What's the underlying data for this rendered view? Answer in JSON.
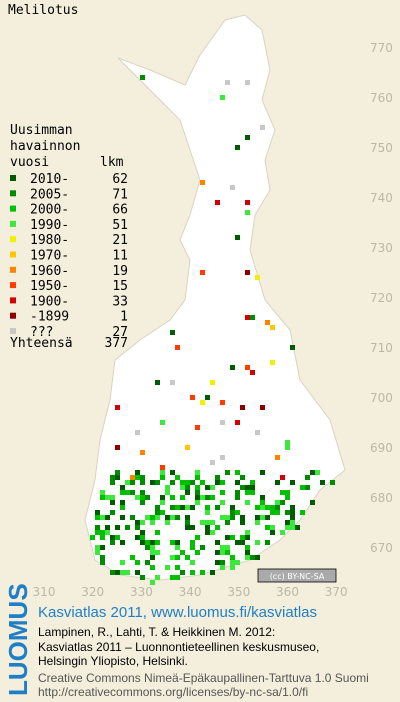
{
  "header": {
    "title": "Melilotus"
  },
  "legend": {
    "heading": [
      "Uusimman",
      "havainnon",
      "vuosi"
    ],
    "count_heading": "lkm",
    "rows": [
      {
        "label": "2010-",
        "count": 62,
        "color": "#005a00"
      },
      {
        "label": "2005-",
        "count": 71,
        "color": "#008c00"
      },
      {
        "label": "2000-",
        "count": 66,
        "color": "#00c000"
      },
      {
        "label": "1990-",
        "count": 51,
        "color": "#3ce83c"
      },
      {
        "label": "1980-",
        "count": 21,
        "color": "#f0f000"
      },
      {
        "label": "1970-",
        "count": 11,
        "color": "#ffc800"
      },
      {
        "label": "1960-",
        "count": 19,
        "color": "#ff8200"
      },
      {
        "label": "1950-",
        "count": 15,
        "color": "#ff3c00"
      },
      {
        "label": "1900-",
        "count": 33,
        "color": "#d20000"
      },
      {
        "label": "-1899",
        "count": 1,
        "color": "#8c0000"
      },
      {
        "label": "???",
        "count": 27,
        "color": "#c8c8c8"
      }
    ],
    "total_label": "Yhteensä",
    "total": 377
  },
  "grid_labels": {
    "north": [
      770,
      760,
      750,
      740,
      730,
      720,
      710,
      700,
      690,
      680,
      670
    ],
    "east": [
      310,
      320,
      330,
      340,
      350,
      360,
      370
    ]
  },
  "license_badge": "(cc) BY-NC-SA",
  "footer": {
    "logo": "LUOMUS",
    "site": "Kasviatlas 2011, www.luomus.fi/kasviatlas",
    "citation": [
      "Lampinen, R., Lahti, T. & Heikkinen M. 2012:",
      "Kasviatlas 2011 – Luonnontieteellinen keskusmuseo,",
      "Helsingin Yliopisto, Helsinki."
    ],
    "license": [
      "Creative Commons Nimeä-Epäkaupallinen-Tarttuva 1.0 Suomi",
      "http://creativecommons.org/licenses/by-nc-sa/1.0/fi"
    ]
  }
}
